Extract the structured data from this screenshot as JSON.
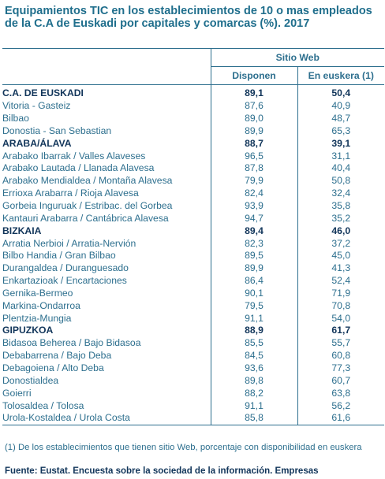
{
  "title": "Equipamientos TIC en los establecimientos de 10 o mas empleados de la C.A de Euskadi por capitales y comarcas (%). 2017",
  "header": {
    "group": "Sitio Web",
    "col1": "Disponen",
    "col2": "En euskera (1)"
  },
  "rows": [
    {
      "name": "C.A. DE EUSKADI",
      "disponen": "89,1",
      "euskera": "50,4",
      "bold": true
    },
    {
      "name": "Vitoria - Gasteiz",
      "disponen": "87,6",
      "euskera": "40,9"
    },
    {
      "name": "Bilbao",
      "disponen": "89,0",
      "euskera": "48,7"
    },
    {
      "name": "Donostia - San Sebastian",
      "disponen": "89,9",
      "euskera": "65,3"
    },
    {
      "name": "ARABA/ÁLAVA",
      "disponen": "88,7",
      "euskera": "39,1",
      "bold": true
    },
    {
      "name": "Arabako Ibarrak  /  Valles Alaveses",
      "disponen": "96,5",
      "euskera": "31,1"
    },
    {
      "name": "Arabako Lautada  /  Llanada Alavesa",
      "disponen": "87,8",
      "euskera": "40,4"
    },
    {
      "name": "Arabako Mendialdea  /  Montaña Alavesa",
      "disponen": "79,9",
      "euskera": "50,8"
    },
    {
      "name": "Errioxa Arabarra  /  Rioja Alavesa",
      "disponen": "82,4",
      "euskera": "32,4"
    },
    {
      "name": "Gorbeia Inguruak  /  Estribac. del Gorbea",
      "disponen": "93,9",
      "euskera": "35,8"
    },
    {
      "name": "Kantauri Arabarra  /  Cantábrica Alavesa",
      "disponen": "94,7",
      "euskera": "35,2"
    },
    {
      "name": "BIZKAIA",
      "disponen": "89,4",
      "euskera": "46,0",
      "bold": true
    },
    {
      "name": "Arratia Nerbioi  /  Arratia-Nervión",
      "disponen": "82,3",
      "euskera": "37,2"
    },
    {
      "name": "Bilbo Handia  /  Gran Bilbao",
      "disponen": "89,5",
      "euskera": "45,0"
    },
    {
      "name": "Durangaldea  /  Duranguesado",
      "disponen": "89,9",
      "euskera": "41,3"
    },
    {
      "name": "Enkartazioak  /  Encartaciones",
      "disponen": "86,4",
      "euskera": "52,4"
    },
    {
      "name": "Gernika-Bermeo",
      "disponen": "90,1",
      "euskera": "71,9"
    },
    {
      "name": "Markina-Ondarroa",
      "disponen": "79,5",
      "euskera": "70,8"
    },
    {
      "name": "Plentzia-Mungia",
      "disponen": "91,1",
      "euskera": "54,0"
    },
    {
      "name": "GIPUZKOA",
      "disponen": "88,9",
      "euskera": "61,7",
      "bold": true
    },
    {
      "name": "Bidasoa Beherea  /  Bajo Bidasoa",
      "disponen": "85,5",
      "euskera": "55,7"
    },
    {
      "name": "Debabarrena  /  Bajo Deba",
      "disponen": "84,5",
      "euskera": "60,8"
    },
    {
      "name": "Debagoiena  /  Alto Deba",
      "disponen": "93,6",
      "euskera": "77,3"
    },
    {
      "name": "Donostialdea",
      "disponen": "89,8",
      "euskera": "60,7"
    },
    {
      "name": "Goierri",
      "disponen": "88,2",
      "euskera": "63,8"
    },
    {
      "name": "Tolosaldea  /  Tolosa",
      "disponen": "91,1",
      "euskera": "56,2"
    },
    {
      "name": "Urola-Kostaldea  /  Urola Costa",
      "disponen": "85,8",
      "euskera": "61,6"
    }
  ],
  "note": "(1) De los establecimientos que tienen sitio Web, porcentaje con disponibilidad en euskera",
  "source": "Fuente: Eustat. Encuesta sobre la sociedad de la información. Empresas"
}
